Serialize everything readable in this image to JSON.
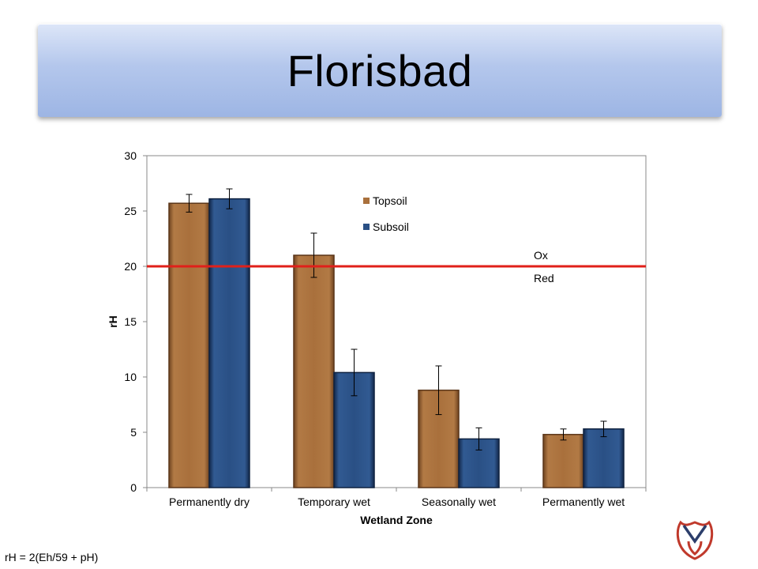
{
  "slide": {
    "title": "Florisbad",
    "footnote": "rH = 2(Eh/59 + pH)",
    "logo_icon": "university-shield-logo-icon"
  },
  "chart_data": {
    "type": "bar",
    "xlabel": "Wetland Zone",
    "ylabel": "rH",
    "ylim": [
      0,
      30
    ],
    "yticks": [
      0,
      5,
      10,
      15,
      20,
      25,
      30
    ],
    "categories": [
      "Permanently dry",
      "Temporary wet",
      "Seasonally wet",
      "Permanently wet"
    ],
    "series": [
      {
        "name": "Topsoil",
        "color": "#a9703c",
        "values": [
          25.7,
          21.0,
          8.8,
          4.8
        ],
        "error": [
          0.8,
          2.0,
          2.2,
          0.5
        ]
      },
      {
        "name": "Subsoil",
        "color": "#2a5085",
        "values": [
          26.1,
          10.4,
          4.4,
          5.3
        ],
        "error": [
          0.9,
          2.1,
          1.0,
          0.7
        ]
      }
    ],
    "reference_line": {
      "value": 20,
      "color": "#e0201a",
      "label_above": "Ox",
      "label_below": "Red"
    },
    "legend_position": "top-right",
    "grid": false
  }
}
